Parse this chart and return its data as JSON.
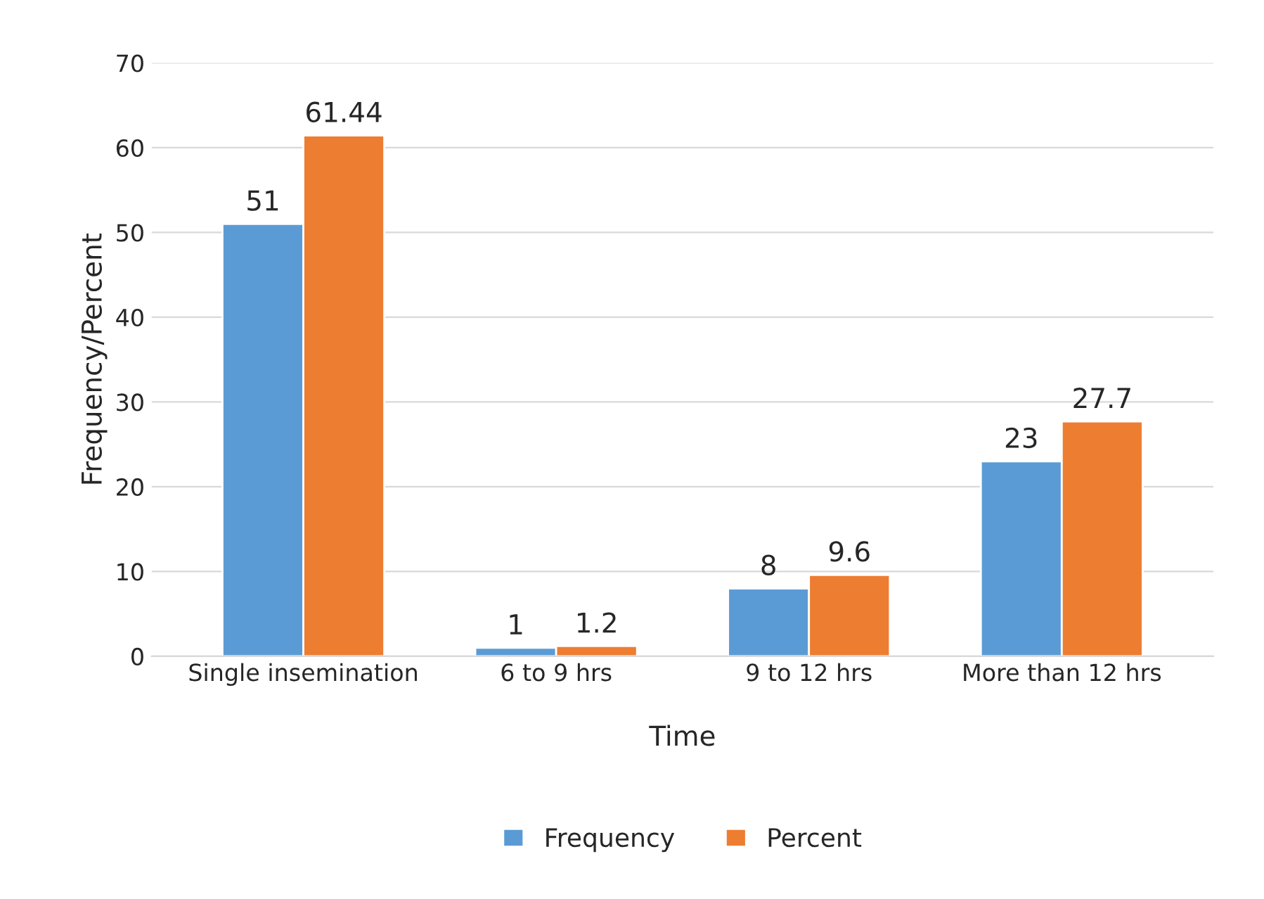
{
  "chart_data": {
    "type": "bar",
    "xlabel": "Time",
    "ylabel": "Frequency/Percent",
    "categories": [
      "Single insemination",
      "6 to 9 hrs",
      "9 to 12 hrs",
      "More than 12 hrs"
    ],
    "series": [
      {
        "name": "Frequency",
        "color": "#5b9bd5",
        "values": [
          51,
          1,
          8,
          23
        ]
      },
      {
        "name": "Percent",
        "color": "#ed7d31",
        "values": [
          61.44,
          1.2,
          9.6,
          27.7
        ]
      }
    ],
    "ylim": [
      0,
      70
    ],
    "yticks": [
      0,
      10,
      20,
      30,
      40,
      50,
      60,
      70
    ],
    "grid": "y",
    "legend": "bottom",
    "data_labels": true
  }
}
